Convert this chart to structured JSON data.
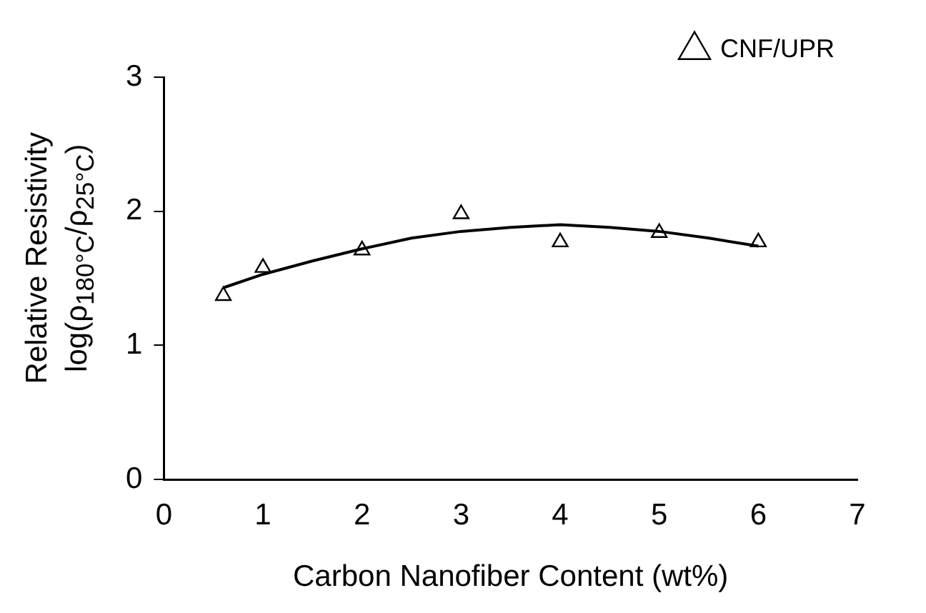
{
  "chart_data": {
    "type": "scatter",
    "xlabel": "Carbon Nanofiber Content (wt%)",
    "ylabel": "Relative Resistivity\nlog(ρ$_{180°C}$/ρ$_{25°C}$)",
    "xlim": [
      0,
      7
    ],
    "xticks": [
      0,
      1,
      2,
      3,
      4,
      5,
      6,
      7
    ],
    "ylim": [
      0,
      3
    ],
    "yticks": [
      0,
      1,
      2,
      3
    ],
    "grid": false,
    "legend": "top right",
    "marker": "triangle",
    "series": [
      {
        "name": "CNF/UPR",
        "color": "#000000",
        "x": [
          0.6,
          1,
          2,
          3,
          4,
          5,
          6
        ],
        "values": [
          1.37,
          1.58,
          1.71,
          1.98,
          1.77,
          1.84,
          1.77
        ]
      },
      {
        "type": "line",
        "color": "#000000",
        "marker": "none",
        "x": [
          0.6,
          1,
          1.5,
          2,
          2.5,
          3,
          3.5,
          4,
          4.5,
          5,
          5.5,
          6
        ],
        "values": [
          1.43,
          1.53,
          1.63,
          1.72,
          1.8,
          1.85,
          1.88,
          1.9,
          1.88,
          1.85,
          1.8,
          1.74
        ]
      }
    ]
  }
}
